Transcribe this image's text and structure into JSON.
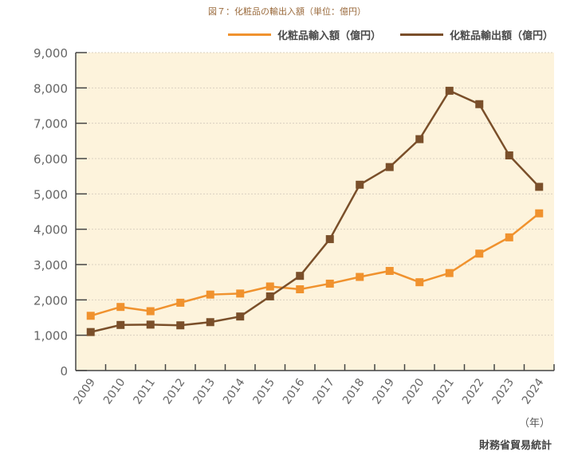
{
  "title": "図７：化粧品の輸出入額（単位：億円）",
  "legend": [
    {
      "label": "化粧品輸入額（億円）",
      "color": "#f0922e"
    },
    {
      "label": "化粧品輸出額（億円）",
      "color": "#7a4f2a"
    }
  ],
  "x_unit": "（年）",
  "source": "財務省貿易統計",
  "colors": {
    "plot_bg": "#fdf3dc",
    "axis": "#444444",
    "grid": "#d9d0c0"
  },
  "chart_data": {
    "type": "line",
    "title": "図７：化粧品の輸出入額（単位：億円）",
    "xlabel": "（年）",
    "ylabel": "",
    "ylim": [
      0,
      9000
    ],
    "yticks": [
      0,
      1000,
      2000,
      3000,
      4000,
      5000,
      6000,
      7000,
      8000,
      9000
    ],
    "ytick_labels": [
      "0",
      "1,000",
      "2,000",
      "3,000",
      "4,000",
      "5,000",
      "6,000",
      "7,000",
      "8,000",
      "9,000"
    ],
    "grid": "horizontal dotted",
    "legend_position": "top-right",
    "x": [
      "2009",
      "2010",
      "2011",
      "2012",
      "2013",
      "2014",
      "2015",
      "2016",
      "2017",
      "2018",
      "2019",
      "2020",
      "2021",
      "2022",
      "2023",
      "2024"
    ],
    "series": [
      {
        "name": "化粧品輸入額（億円）",
        "color": "#f0922e",
        "values": [
          1550,
          1800,
          1680,
          1920,
          2150,
          2180,
          2380,
          2300,
          2460,
          2650,
          2820,
          2500,
          2760,
          3310,
          3770,
          4450
        ]
      },
      {
        "name": "化粧品輸出額（億円）",
        "color": "#7a4f2a",
        "values": [
          1090,
          1290,
          1300,
          1280,
          1370,
          1530,
          2100,
          2680,
          3720,
          5260,
          5760,
          6550,
          7920,
          7540,
          6090,
          5200
        ]
      }
    ]
  }
}
